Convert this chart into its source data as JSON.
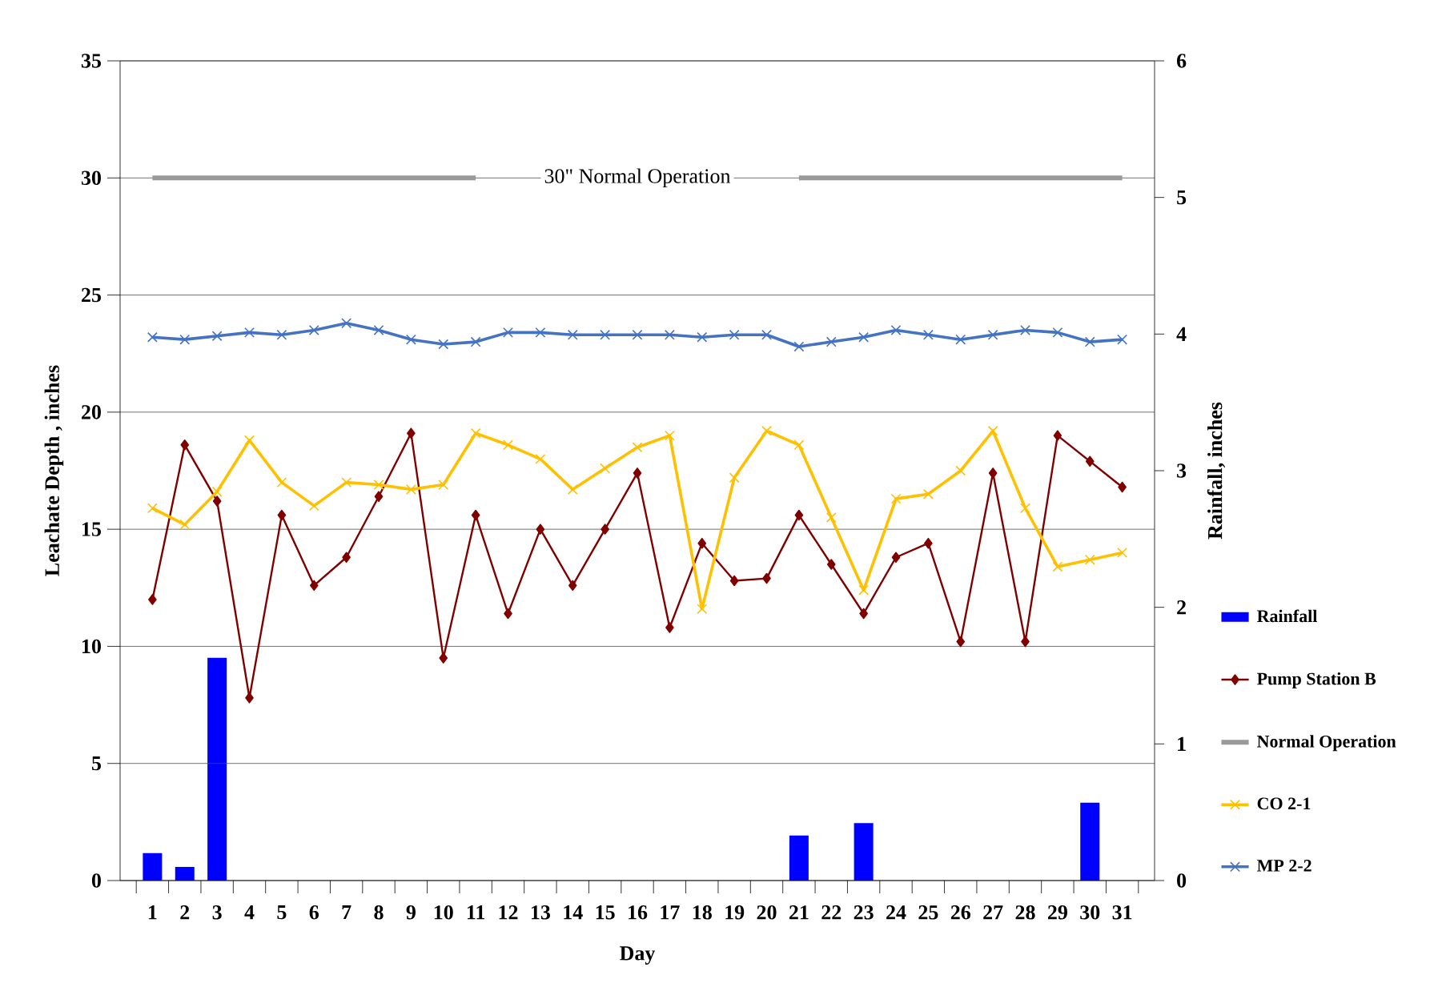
{
  "chart_data": {
    "type": "line",
    "xlabel": "Day",
    "ylabel": "Leachate Depth , inches",
    "y2label": "Rainfall, inches",
    "categories": [
      "1",
      "2",
      "3",
      "4",
      "5",
      "6",
      "7",
      "8",
      "9",
      "10",
      "11",
      "12",
      "13",
      "14",
      "15",
      "16",
      "17",
      "18",
      "19",
      "20",
      "21",
      "22",
      "23",
      "24",
      "25",
      "26",
      "27",
      "28",
      "29",
      "30",
      "31"
    ],
    "series": [
      {
        "name": "Rainfall",
        "type": "bar",
        "axis": "y2",
        "color": "#0000ff",
        "values": [
          0.2,
          0.1,
          1.63,
          0,
          0,
          0,
          0,
          0,
          0,
          0,
          0,
          0,
          0,
          0,
          0,
          0,
          0,
          0,
          0,
          0,
          0.33,
          0,
          0.42,
          0,
          0,
          0,
          0,
          0,
          0,
          0.57,
          0
        ]
      },
      {
        "name": "Pump Station B",
        "color": "#800000",
        "marker": "diamond",
        "values": [
          12.0,
          18.6,
          16.2,
          7.8,
          15.6,
          12.6,
          13.8,
          16.4,
          19.1,
          9.5,
          15.6,
          11.4,
          15.0,
          12.6,
          15.0,
          17.4,
          10.8,
          14.4,
          12.8,
          12.9,
          15.6,
          13.5,
          11.4,
          13.8,
          14.4,
          10.2,
          17.4,
          10.2,
          19.0,
          17.9,
          16.8
        ]
      },
      {
        "name": "Normal Operation",
        "color": "#999999",
        "marker": "none",
        "values": [
          30,
          30,
          30,
          30,
          30,
          30,
          30,
          30,
          30,
          30,
          30,
          null,
          null,
          null,
          null,
          null,
          null,
          null,
          null,
          null,
          30,
          30,
          30,
          30,
          30,
          30,
          30,
          30,
          30,
          30,
          30
        ]
      },
      {
        "name": "CO 2-1",
        "color": "#ffc000",
        "marker": "cross",
        "values": [
          15.9,
          15.2,
          16.6,
          18.8,
          17.0,
          16.0,
          17.0,
          16.9,
          16.7,
          16.9,
          19.1,
          18.6,
          18.0,
          16.7,
          17.6,
          18.5,
          19.0,
          11.6,
          17.2,
          19.2,
          18.6,
          15.5,
          12.4,
          16.3,
          16.5,
          17.5,
          19.2,
          15.9,
          13.4,
          13.7,
          14.0
        ]
      },
      {
        "name": "MP 2-2",
        "color": "#4472c4",
        "marker": "cross",
        "values": [
          23.2,
          23.1,
          23.25,
          23.4,
          23.3,
          23.5,
          23.8,
          23.5,
          23.1,
          22.9,
          23.0,
          23.4,
          23.4,
          23.3,
          23.3,
          23.3,
          23.3,
          23.2,
          23.3,
          23.3,
          22.8,
          23.0,
          23.2,
          23.5,
          23.3,
          23.1,
          23.3,
          23.5,
          23.4,
          23.0,
          23.1
        ]
      }
    ],
    "annotations": [
      "30\" Normal Operation"
    ],
    "ylim": [
      0,
      35
    ],
    "yticks": [
      0,
      5,
      10,
      15,
      20,
      25,
      30,
      35
    ],
    "y2lim": [
      0,
      6
    ],
    "y2ticks": [
      0,
      1,
      2,
      3,
      4,
      5,
      6
    ],
    "grid": "y",
    "legend": "right"
  }
}
